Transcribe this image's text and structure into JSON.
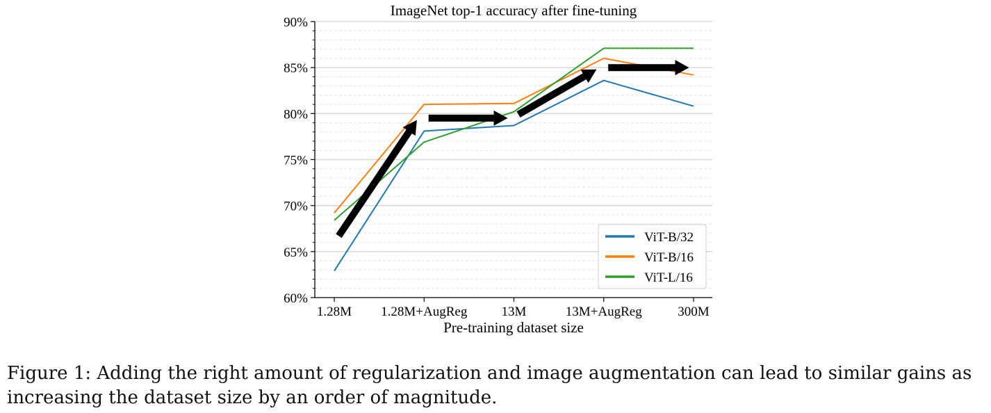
{
  "chart_data": {
    "type": "line",
    "title": "ImageNet top-1 accuracy after fine-tuning",
    "xlabel": "Pre-training dataset size",
    "ylabel": "",
    "categories": [
      "1.28M",
      "1.28M+AugReg",
      "13M",
      "13M+AugReg",
      "300M"
    ],
    "ylim": [
      60,
      90
    ],
    "yticks": [
      60,
      65,
      70,
      75,
      80,
      85,
      90
    ],
    "ytick_labels": [
      "60%",
      "65%",
      "70%",
      "75%",
      "80%",
      "85%",
      "90%"
    ],
    "grid": true,
    "legend_position": "bottom-right",
    "series": [
      {
        "name": "ViT-B/32",
        "color": "#1f77b4",
        "values": [
          62.9,
          78.1,
          78.7,
          83.6,
          80.8
        ]
      },
      {
        "name": "ViT-B/16",
        "color": "#ff7f0e",
        "values": [
          69.2,
          81.0,
          81.1,
          86.0,
          84.2
        ]
      },
      {
        "name": "ViT-L/16",
        "color": "#2ca02c",
        "values": [
          68.4,
          76.9,
          80.2,
          87.1,
          87.1
        ]
      }
    ],
    "annotation_arrows": [
      {
        "from": [
          0.05,
          66.7
        ],
        "to": [
          0.92,
          79.3
        ]
      },
      {
        "from": [
          1.05,
          79.5
        ],
        "to": [
          1.93,
          79.5
        ]
      },
      {
        "from": [
          2.05,
          79.9
        ],
        "to": [
          2.92,
          84.8
        ]
      },
      {
        "from": [
          3.05,
          85.0
        ],
        "to": [
          3.95,
          85.0
        ]
      }
    ]
  },
  "caption": {
    "line1": "Figure 1: Adding the right amount of regularization and image augmentation can lead to similar gains as",
    "line2": "increasing the dataset size by an order of magnitude."
  }
}
